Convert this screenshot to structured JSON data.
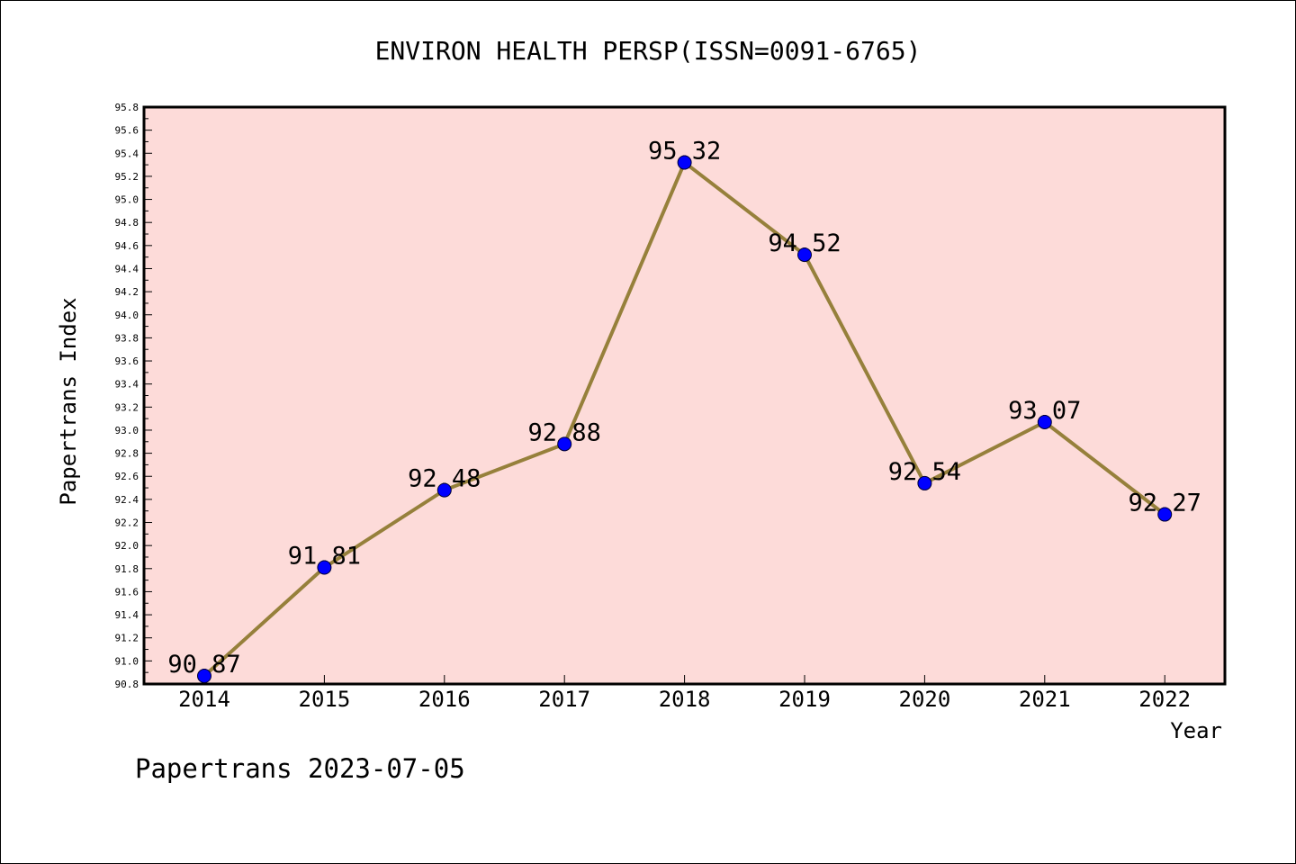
{
  "chart_data": {
    "type": "line",
    "title": "ENVIRON HEALTH PERSP(ISSN=0091-6765)",
    "xlabel": "Year",
    "ylabel": "Papertrans Index",
    "categories": [
      "2014",
      "2015",
      "2016",
      "2017",
      "2018",
      "2019",
      "2020",
      "2021",
      "2022"
    ],
    "values": [
      90.87,
      91.81,
      92.48,
      92.88,
      95.32,
      94.52,
      92.54,
      93.07,
      92.27
    ],
    "data_labels": [
      "90.87",
      "91.81",
      "92.48",
      "92.88",
      "95.32",
      "94.52",
      "92.54",
      "93.07",
      "92.27"
    ],
    "ylim": [
      90.8,
      95.8
    ],
    "y_major_step": 0.2,
    "y_minor_step": 0.1,
    "yticks": [
      "90.8",
      "91.0",
      "91.2",
      "91.4",
      "91.6",
      "91.8",
      "92.0",
      "92.2",
      "92.4",
      "92.6",
      "92.8",
      "93.0",
      "93.2",
      "93.4",
      "93.6",
      "93.8",
      "94.0",
      "94.2",
      "94.4",
      "94.6",
      "94.8",
      "95.0",
      "95.2",
      "95.4",
      "95.6",
      "95.8"
    ],
    "grid": false,
    "colors": {
      "plot_background": "#fddbd9",
      "line": "#96803b",
      "marker": "#0000ff"
    }
  },
  "footer": "Papertrans 2023-07-05"
}
